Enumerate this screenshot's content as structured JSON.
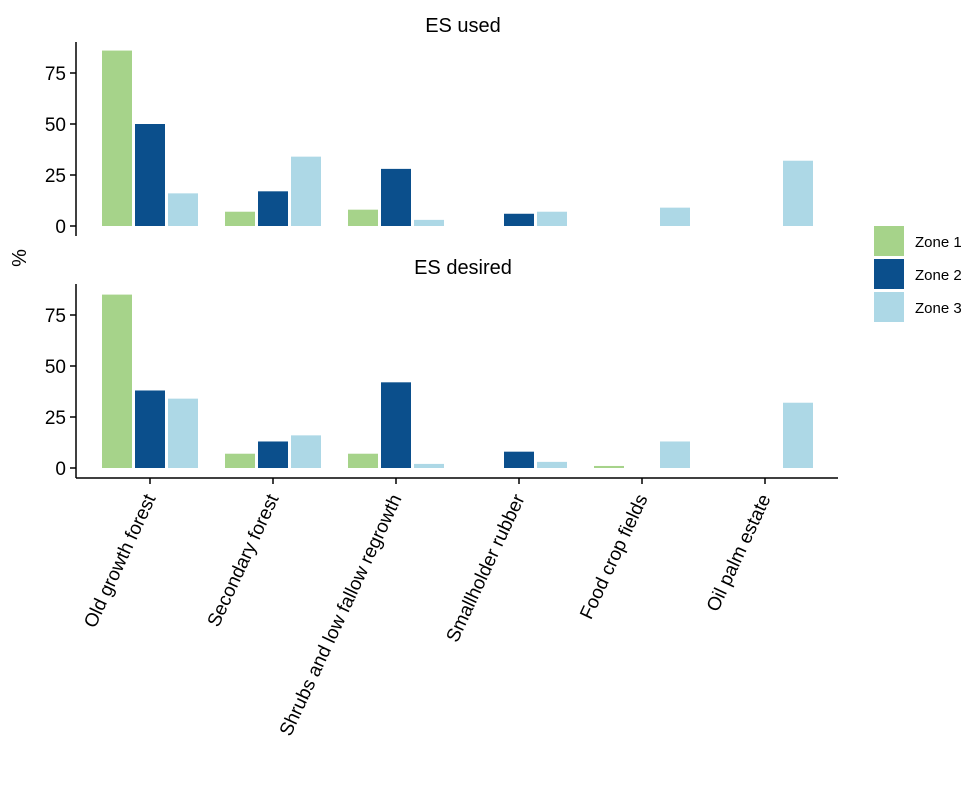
{
  "chart_data": {
    "type": "bar",
    "ylabel": "%",
    "categories": [
      "Old growth forest",
      "Secondary forest",
      "Shrubs and low fallow regrowth",
      "Smallholder rubber",
      "Food crop fields",
      "Oil palm estate"
    ],
    "ylim": [
      0,
      90
    ],
    "yticks": [
      0,
      25,
      50,
      75
    ],
    "legend": {
      "position": "right",
      "entries": [
        {
          "name": "Zone 1",
          "color": "#a6d38a"
        },
        {
          "name": "Zone 2",
          "color": "#0b4f8c"
        },
        {
          "name": "Zone 3",
          "color": "#add8e6"
        }
      ]
    },
    "panels": [
      {
        "title": "ES used",
        "series": [
          {
            "name": "Zone 1",
            "values": [
              86,
              7,
              8,
              0,
              0,
              0
            ]
          },
          {
            "name": "Zone 2",
            "values": [
              50,
              17,
              28,
              6,
              0,
              0
            ]
          },
          {
            "name": "Zone 3",
            "values": [
              16,
              34,
              3,
              7,
              9,
              32
            ]
          }
        ]
      },
      {
        "title": "ES desired",
        "series": [
          {
            "name": "Zone 1",
            "values": [
              85,
              7,
              7,
              0,
              1,
              0
            ]
          },
          {
            "name": "Zone 2",
            "values": [
              38,
              13,
              42,
              8,
              0,
              0
            ]
          },
          {
            "name": "Zone 3",
            "values": [
              34,
              16,
              2,
              3,
              13,
              32
            ]
          }
        ]
      }
    ]
  }
}
